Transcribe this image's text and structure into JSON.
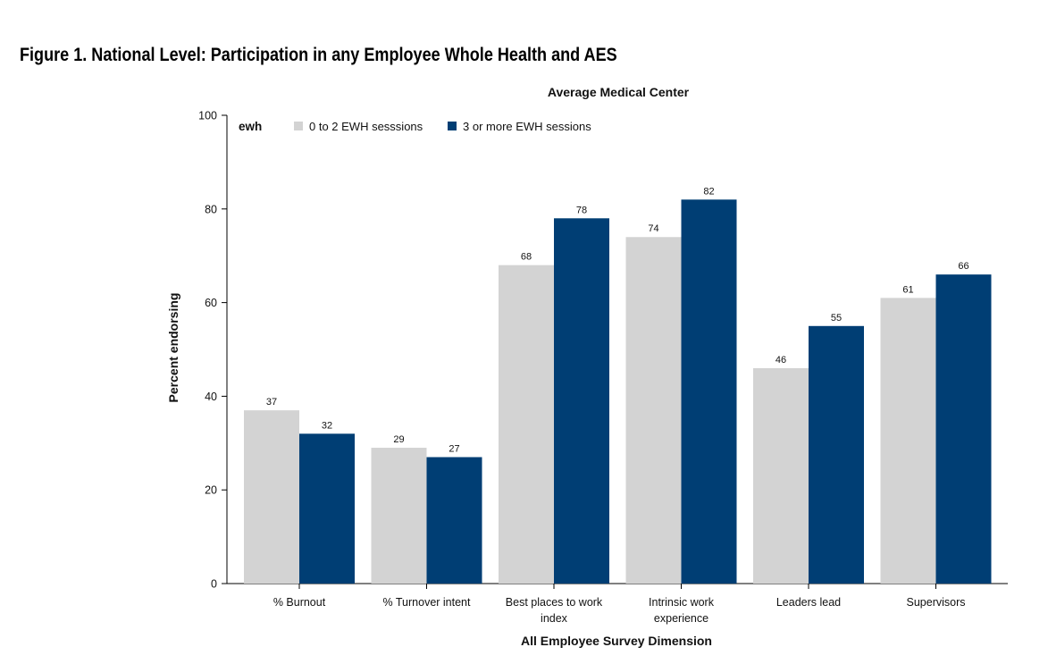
{
  "figure_title": "Figure 1. National Level: Participation in any Employee Whole Health and AES",
  "colors": {
    "series_low": "#d3d3d3",
    "series_high": "#003e74",
    "axis": "#000000"
  },
  "chart_data": {
    "type": "bar",
    "title": "Average Medical Center",
    "xlabel": "All Employee Survey Dimension",
    "ylabel": "Percent endorsing",
    "ylim": [
      0,
      100
    ],
    "yticks": [
      0,
      20,
      40,
      60,
      80,
      100
    ],
    "grid": false,
    "legend_title": "ewh",
    "legend_position": "top-left",
    "categories": [
      [
        "% Burnout"
      ],
      [
        "% Turnover intent"
      ],
      [
        "Best places to work",
        "index"
      ],
      [
        "Intrinsic work",
        "experience"
      ],
      [
        "Leaders lead"
      ],
      [
        "Supervisors"
      ]
    ],
    "series": [
      {
        "name": "0 to 2 EWH sesssions",
        "values": [
          37,
          29,
          68,
          74,
          46,
          61
        ],
        "color": "#d3d3d3"
      },
      {
        "name": "3 or more EWH sessions",
        "values": [
          32,
          27,
          78,
          82,
          55,
          66
        ],
        "color": "#003e74"
      }
    ]
  }
}
